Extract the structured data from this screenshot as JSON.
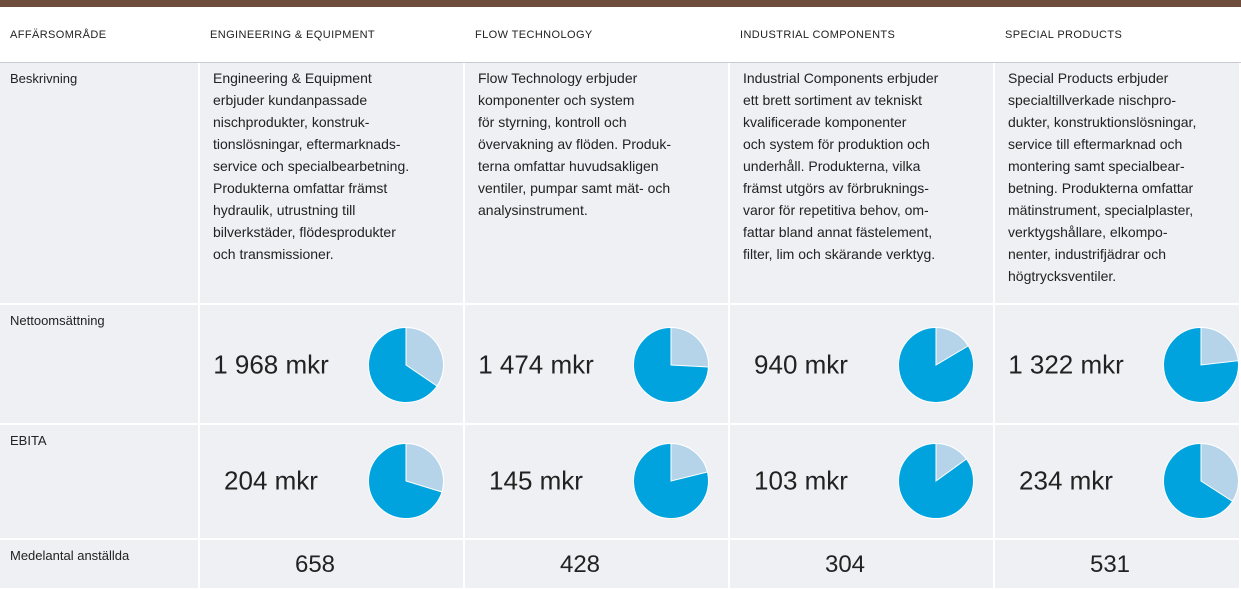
{
  "columns": [
    "AFFÄRSOMRÅDE",
    "ENGINEERING & EQUIPMENT",
    "FLOW TECHNOLOGY",
    "INDUSTRIAL COMPONENTS",
    "SPECIAL PRODUCTS"
  ],
  "rows": [
    {
      "label": "Beskrivning",
      "cells": [
        "Engineering & Equipment\nerbjuder kundanpassade\nnischprodukter, konstruk-\ntionslösningar, eftermarknads-\nservice och specialbearbetning.\nProdukterna omfattar främst\nhydraulik, utrustning till\nbilverkstäder, flödesprodukter\noch transmissioner.",
        "Flow Technology erbjuder\nkomponenter och system\nför styrning, kontroll och\növervakning av flöden. Produk-\nterna omfattar huvudsakligen\nventiler, pumpar samt mät- och\nanalysinstrument.",
        "Industrial Components erbjuder\nett brett sortiment av tekniskt\nkvalificerade komponenter\noch system för produktion och\nunderhåll. Produkterna, vilka\nfrämst utgörs av förbruknings-\nvaror för repetitiva behov, om-\nfattar bland annat fästelement,\nfilter, lim och skärande verktyg.",
        "Special Products erbjuder\nspecialtillverkade nischpro-\ndukter, konstruktionslösningar,\nservice till eftermarknad och\nmontering samt specialbear-\nbetning. Produkterna omfattar\nmätinstrument, specialplaster,\nverktygshållare, elkompo-\nnenter, industrifjädrar och\nhögtrycksventiler."
      ]
    },
    {
      "label": "Nettoomsättning",
      "values": [
        1968,
        1474,
        940,
        1322
      ],
      "value_labels": [
        "1 968 mkr",
        "1 474 mkr",
        "940 mkr",
        "1 322 mkr"
      ]
    },
    {
      "label": "EBITA",
      "values": [
        204,
        145,
        103,
        234
      ],
      "value_labels": [
        "204 mkr",
        "145 mkr",
        "103 mkr",
        "234 mkr"
      ]
    },
    {
      "label": "Medelantal anställda",
      "values": [
        658,
        428,
        304,
        531
      ]
    }
  ]
}
